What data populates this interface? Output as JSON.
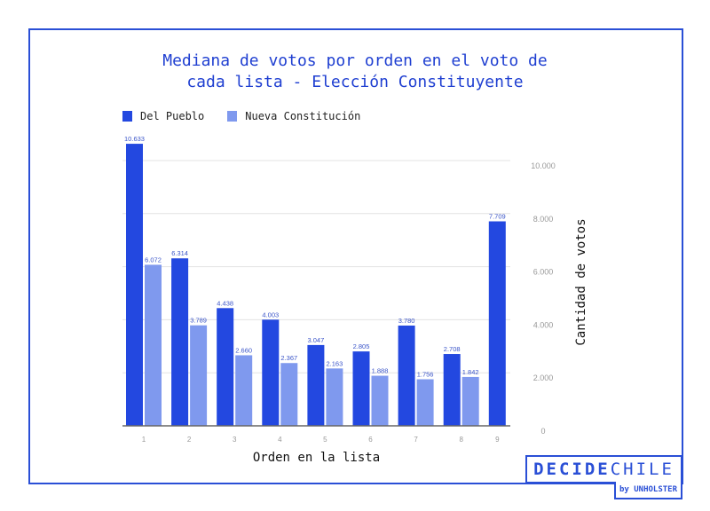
{
  "chart_data": {
    "type": "bar",
    "title_lines": [
      "Mediana de votos por orden en el voto de",
      "cada lista - Elección Constituyente"
    ],
    "xlabel": "Orden en la lista",
    "ylabel": "Cantidad de votos",
    "categories": [
      "1",
      "2",
      "3",
      "4",
      "5",
      "6",
      "7",
      "8",
      "9"
    ],
    "series": [
      {
        "name": "Del Pueblo",
        "color": "#2348e0",
        "values": [
          10633,
          6314,
          4438,
          4003,
          3047,
          2805,
          3780,
          2708,
          7709
        ],
        "labels": [
          "10.633",
          "6.314",
          "4.438",
          "4.003",
          "3.047",
          "2.805",
          "3.780",
          "2.708",
          "7.709"
        ]
      },
      {
        "name": "Nueva Constitución",
        "color": "#7f99ee",
        "values": [
          6072,
          3789,
          2660,
          2367,
          2163,
          1888,
          1756,
          1842,
          null
        ],
        "labels": [
          "6.072",
          "3.789",
          "2.660",
          "2.367",
          "2.163",
          "1.888",
          "1.756",
          "1.842",
          ""
        ]
      }
    ],
    "ylim": [
      0,
      10000
    ],
    "yticks": [
      0,
      2000,
      4000,
      6000,
      8000,
      10000
    ],
    "ytick_labels": [
      "0",
      "2.000",
      "4.000",
      "6.000",
      "8.000",
      "10.000"
    ],
    "y_axis_side": "right",
    "grid": true,
    "legend_position": "top-left",
    "label_color": "#3b55c9",
    "grid_color": "#e3e3e3",
    "axis_color": "#666666",
    "tick_label_color": "#999999"
  },
  "branding": {
    "logo_bold": "DECIDE",
    "logo_light": "CHILE",
    "byline": "by UNHOLSTER",
    "color": "#2a4fd6"
  }
}
